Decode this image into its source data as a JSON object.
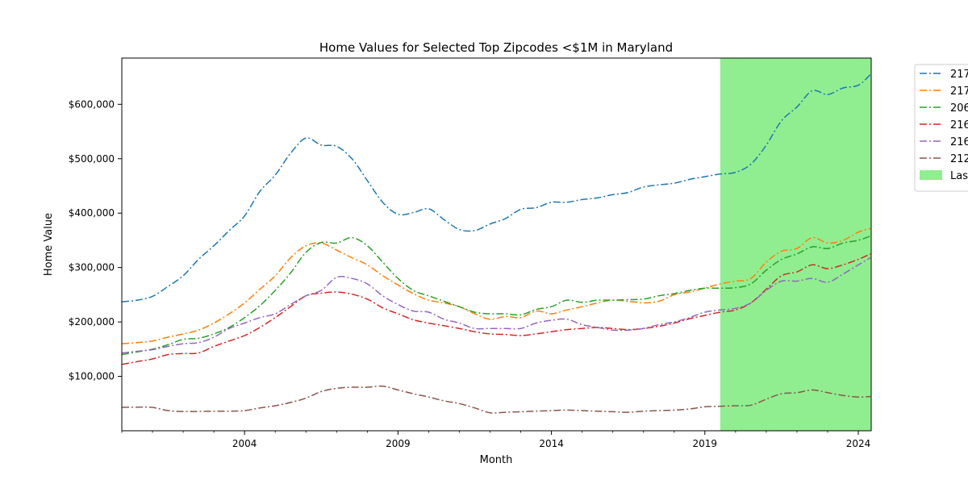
{
  "chart_data": {
    "type": "line",
    "title": "Home Values for Selected Top Zipcodes <$1M in Maryland",
    "xlabel": "Month",
    "ylabel": "Home Value",
    "xlim": [
      2000.0,
      2024.42
    ],
    "ylim": [
      0,
      685000
    ],
    "x_ticks": [
      {
        "value": 2004.0,
        "label": "2004"
      },
      {
        "value": 2009.0,
        "label": "2009"
      },
      {
        "value": 2014.0,
        "label": "2014"
      },
      {
        "value": 2019.0,
        "label": "2019"
      },
      {
        "value": 2024.0,
        "label": "2024"
      }
    ],
    "y_ticks": [
      {
        "value": 100000,
        "label": "$100,000"
      },
      {
        "value": 200000,
        "label": "$200,000"
      },
      {
        "value": 300000,
        "label": "$300,000"
      },
      {
        "value": 400000,
        "label": "$400,000"
      },
      {
        "value": 500000,
        "label": "$500,000"
      },
      {
        "value": 600000,
        "label": "$600,000"
      }
    ],
    "grid": false,
    "legend_position": "outside-right",
    "line_style": "dashdot",
    "x": [
      2000.0,
      2000.5,
      2001.0,
      2001.5,
      2002.0,
      2002.5,
      2003.0,
      2003.5,
      2004.0,
      2004.5,
      2005.0,
      2005.5,
      2006.0,
      2006.5,
      2007.0,
      2007.5,
      2008.0,
      2008.5,
      2009.0,
      2009.5,
      2010.0,
      2010.5,
      2011.0,
      2011.5,
      2012.0,
      2012.5,
      2013.0,
      2013.5,
      2014.0,
      2014.5,
      2015.0,
      2015.5,
      2016.0,
      2016.5,
      2017.0,
      2017.5,
      2018.0,
      2018.5,
      2019.0,
      2019.5,
      2020.0,
      2020.5,
      2021.0,
      2021.5,
      2022.0,
      2022.5,
      2023.0,
      2023.5,
      2024.0,
      2024.4
    ],
    "series": [
      {
        "name": "217",
        "color": "#1f77b4",
        "values": [
          237000,
          240000,
          247000,
          265000,
          285000,
          315000,
          340000,
          368000,
          395000,
          440000,
          470000,
          510000,
          538000,
          525000,
          523000,
          500000,
          460000,
          420000,
          398000,
          401000,
          408000,
          388000,
          370000,
          368000,
          380000,
          390000,
          407000,
          410000,
          420000,
          420000,
          425000,
          428000,
          434000,
          438000,
          448000,
          452000,
          455000,
          462000,
          467000,
          472000,
          475000,
          490000,
          525000,
          570000,
          595000,
          625000,
          618000,
          630000,
          635000,
          655000
        ]
      },
      {
        "name": "217",
        "color": "#ff7f0e",
        "values": [
          160000,
          162000,
          165000,
          172000,
          178000,
          185000,
          198000,
          215000,
          235000,
          260000,
          285000,
          318000,
          340000,
          345000,
          332000,
          318000,
          305000,
          285000,
          268000,
          252000,
          240000,
          235000,
          228000,
          215000,
          205000,
          210000,
          208000,
          220000,
          215000,
          222000,
          228000,
          235000,
          240000,
          238000,
          235000,
          238000,
          250000,
          255000,
          262000,
          270000,
          275000,
          280000,
          310000,
          330000,
          335000,
          355000,
          345000,
          350000,
          365000,
          372000
        ]
      },
      {
        "name": "206",
        "color": "#2ca02c",
        "values": [
          140000,
          145000,
          150000,
          158000,
          168000,
          170000,
          178000,
          190000,
          208000,
          230000,
          258000,
          290000,
          328000,
          346000,
          345000,
          355000,
          340000,
          310000,
          280000,
          258000,
          248000,
          238000,
          228000,
          218000,
          215000,
          215000,
          213000,
          223000,
          228000,
          240000,
          236000,
          240000,
          240000,
          241000,
          242000,
          248000,
          252000,
          258000,
          262000,
          262000,
          263000,
          270000,
          295000,
          315000,
          325000,
          338000,
          335000,
          345000,
          350000,
          358000
        ]
      },
      {
        "name": "216",
        "color": "#d62728",
        "values": [
          122000,
          127000,
          132000,
          140000,
          142000,
          143000,
          155000,
          165000,
          175000,
          190000,
          208000,
          228000,
          248000,
          253000,
          255000,
          251000,
          242000,
          226000,
          215000,
          204000,
          198000,
          193000,
          188000,
          182000,
          178000,
          177000,
          175000,
          178000,
          182000,
          186000,
          188000,
          190000,
          188000,
          186000,
          188000,
          192000,
          198000,
          206000,
          212000,
          218000,
          222000,
          235000,
          260000,
          285000,
          292000,
          305000,
          298000,
          305000,
          315000,
          325000
        ]
      },
      {
        "name": "216",
        "color": "#9467bd",
        "values": [
          143000,
          146000,
          149000,
          155000,
          160000,
          162000,
          172000,
          188000,
          198000,
          208000,
          215000,
          232000,
          248000,
          258000,
          282000,
          280000,
          270000,
          248000,
          232000,
          220000,
          218000,
          205000,
          198000,
          188000,
          188000,
          188000,
          188000,
          198000,
          203000,
          205000,
          195000,
          190000,
          185000,
          185000,
          188000,
          195000,
          200000,
          208000,
          218000,
          222000,
          225000,
          235000,
          258000,
          275000,
          275000,
          280000,
          273000,
          288000,
          305000,
          318000
        ]
      },
      {
        "name": "212",
        "color": "#8c564b",
        "values": [
          43000,
          43500,
          43000,
          37000,
          35500,
          35500,
          36000,
          36000,
          37000,
          42000,
          46000,
          52000,
          60000,
          72000,
          78000,
          80000,
          80000,
          82000,
          75000,
          68000,
          62000,
          55000,
          50000,
          42000,
          33000,
          34000,
          35000,
          36000,
          37000,
          38000,
          37000,
          36000,
          35000,
          34000,
          36000,
          37000,
          38000,
          40000,
          44000,
          45000,
          46000,
          47000,
          58000,
          68000,
          70000,
          75000,
          70000,
          65000,
          62000,
          63000
        ]
      }
    ],
    "highlight": {
      "label": "Las",
      "x_start": 2019.5,
      "x_end": 2024.42,
      "color": "#90ee90"
    }
  }
}
